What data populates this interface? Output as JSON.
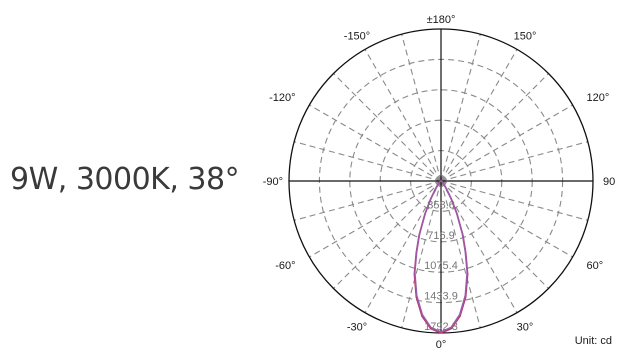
{
  "spec_text": "9W, 3000K, 38°",
  "chart_data": {
    "type": "polar",
    "angle_labels": [
      {
        "deg": 180,
        "text": "±180°"
      },
      {
        "deg": 150,
        "text": "150°"
      },
      {
        "deg": 120,
        "text": "120°"
      },
      {
        "deg": 90,
        "text": "90"
      },
      {
        "deg": 60,
        "text": "60°"
      },
      {
        "deg": 30,
        "text": "30°"
      },
      {
        "deg": 0,
        "text": "0°"
      },
      {
        "deg": -30,
        "text": "-30°"
      },
      {
        "deg": -60,
        "text": "-60°"
      },
      {
        "deg": -90,
        "text": "-90°"
      },
      {
        "deg": -120,
        "text": "-120°"
      },
      {
        "deg": -150,
        "text": "-150°"
      }
    ],
    "radial_ticks": [
      358.6,
      716.9,
      1075.4,
      1433.9,
      1792.3
    ],
    "radial_max": 1792.3,
    "unit": "Unit: cd",
    "beam_angle_deg": 38,
    "series": [
      {
        "color": "#c0306a",
        "angles_deg": [
          0,
          4,
          8,
          12,
          16,
          19,
          22,
          26,
          30,
          35,
          40,
          50,
          60,
          70,
          80,
          90
        ],
        "values": [
          1792.3,
          1745,
          1610,
          1400,
          1140,
          896,
          690,
          430,
          240,
          110,
          55,
          25,
          12,
          6,
          3,
          0
        ]
      },
      {
        "color": "#9b5aa8",
        "angles_deg": [
          0,
          4,
          8,
          12,
          16,
          19,
          22,
          26,
          30,
          35,
          40,
          50,
          60,
          70,
          80,
          90
        ],
        "values": [
          1780,
          1730,
          1590,
          1380,
          1120,
          880,
          675,
          420,
          232,
          105,
          52,
          24,
          11,
          5,
          2,
          0
        ]
      }
    ]
  }
}
